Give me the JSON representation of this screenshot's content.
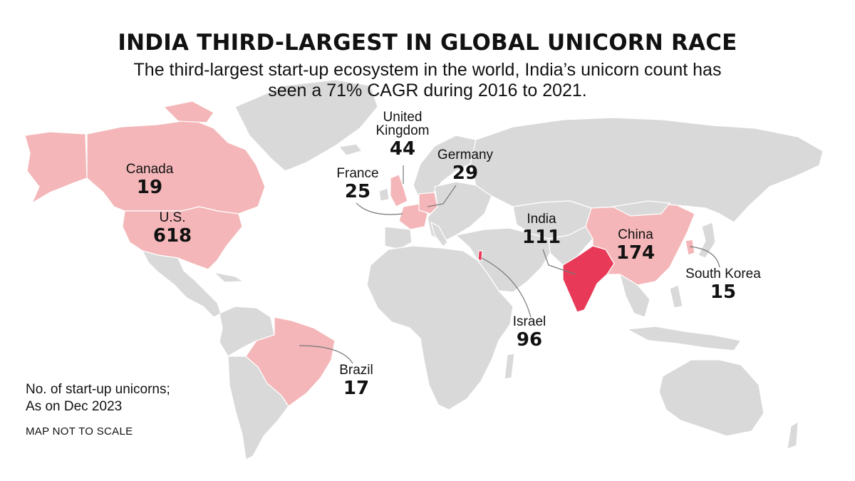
{
  "title": "INDIA THIRD-LARGEST IN GLOBAL UNICORN RACE",
  "subtitle_line1": "The third-largest start-up ecosystem in the world, India’s unicorn count has",
  "subtitle_line2": "seen a 71% CAGR during 2016 to 2021.",
  "note_line1": "No. of start-up unicorns;",
  "note_line2": "As on Dec 2023",
  "scale_note": "MAP NOT TO SCALE",
  "colors": {
    "land": "#d9d9d9",
    "highlight": "#f4b6b8",
    "india": "#e83a58"
  },
  "countries": {
    "canada": {
      "name": "Canada",
      "count": "19"
    },
    "us": {
      "name": "U.S.",
      "count": "618"
    },
    "uk": {
      "name_line1": "United",
      "name_line2": "Kingdom",
      "count": "44"
    },
    "germany": {
      "name": "Germany",
      "count": "29"
    },
    "france": {
      "name": "France",
      "count": "25"
    },
    "india": {
      "name": "India",
      "count": "111"
    },
    "china": {
      "name": "China",
      "count": "174"
    },
    "south_korea": {
      "name": "South Korea",
      "count": "15"
    },
    "israel": {
      "name": "Israel",
      "count": "96"
    },
    "brazil": {
      "name": "Brazil",
      "count": "17"
    }
  }
}
